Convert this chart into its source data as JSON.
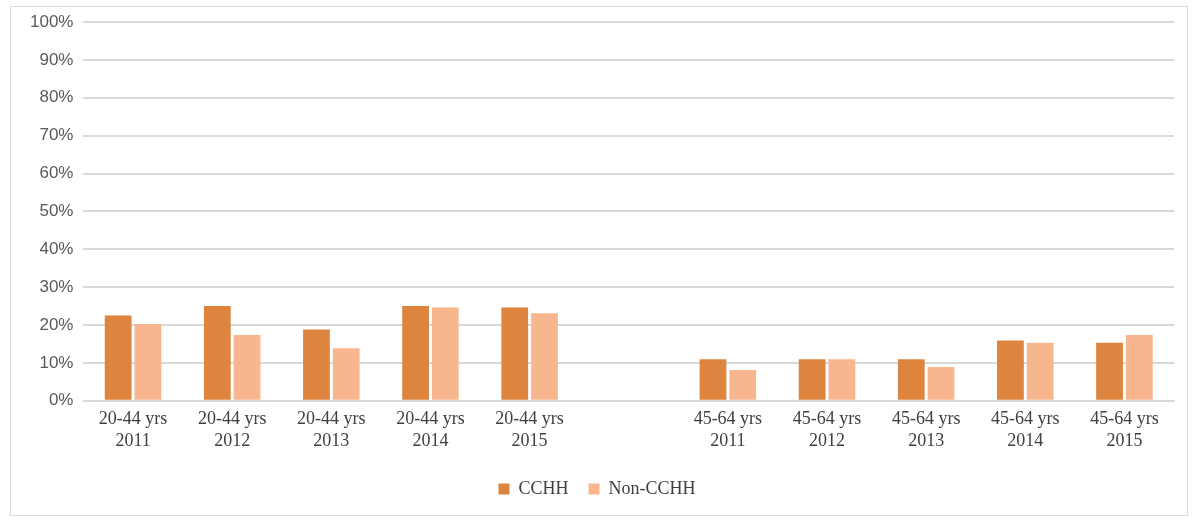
{
  "chart_data": {
    "type": "bar",
    "categories": [
      "20-44 yrs 2011",
      "20-44 yrs 2012",
      "20-44 yrs 2013",
      "20-44 yrs 2014",
      "20-44 yrs 2015",
      null,
      "45-64 yrs 2011",
      "45-64 yrs 2012",
      "45-64 yrs 2013",
      "45-64 yrs 2014",
      "45-64 yrs 2015"
    ],
    "series": [
      {
        "name": "CCHH",
        "color": "#dd843f",
        "values": [
          22.5,
          25,
          18.8,
          25,
          24.6,
          null,
          11,
          11,
          11,
          15.9,
          15.3
        ]
      },
      {
        "name": "Non-CCHH",
        "color": "#f8b68f",
        "values": [
          20.3,
          17.4,
          13.9,
          24.6,
          23.1,
          null,
          8.1,
          11,
          8.9,
          15.3,
          17.4
        ]
      }
    ],
    "ylim": [
      0,
      100
    ],
    "yticks": [
      {
        "value": 0,
        "label": "0%"
      },
      {
        "value": 10,
        "label": "10%"
      },
      {
        "value": 20,
        "label": "20%"
      },
      {
        "value": 30,
        "label": "30%"
      },
      {
        "value": 40,
        "label": "40%"
      },
      {
        "value": 50,
        "label": "50%"
      },
      {
        "value": 60,
        "label": "60%"
      },
      {
        "value": 70,
        "label": "70%"
      },
      {
        "value": 80,
        "label": "80%"
      },
      {
        "value": 90,
        "label": "90%"
      },
      {
        "value": 100,
        "label": "100%"
      }
    ],
    "grid": "y",
    "legend": "bottom"
  }
}
